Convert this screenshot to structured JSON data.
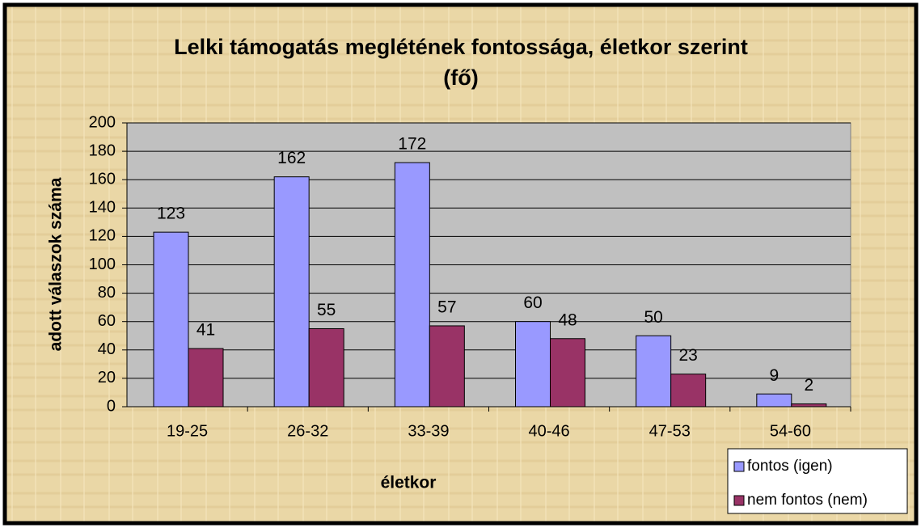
{
  "chart_data": {
    "type": "bar",
    "title": [
      "Lelki támogatás meglétének fontossága, életkor szerint",
      "(fő)"
    ],
    "y_label": "adott válaszok száma",
    "x_label": "életkor",
    "categories": [
      "19-25",
      "26-32",
      "33-39",
      "40-46",
      "47-53",
      "54-60"
    ],
    "series": [
      {
        "name": "fontos (igen)",
        "color": "#9999ff",
        "values": [
          123,
          162,
          172,
          60,
          50,
          9
        ]
      },
      {
        "name": "nem fontos (nem)",
        "color": "#993366",
        "values": [
          41,
          55,
          57,
          48,
          23,
          2
        ]
      }
    ],
    "ylim": [
      0,
      200
    ],
    "yticks": [
      0,
      20,
      40,
      60,
      80,
      100,
      120,
      140,
      160,
      180,
      200
    ],
    "grid": true,
    "legend": "bottom-right"
  }
}
